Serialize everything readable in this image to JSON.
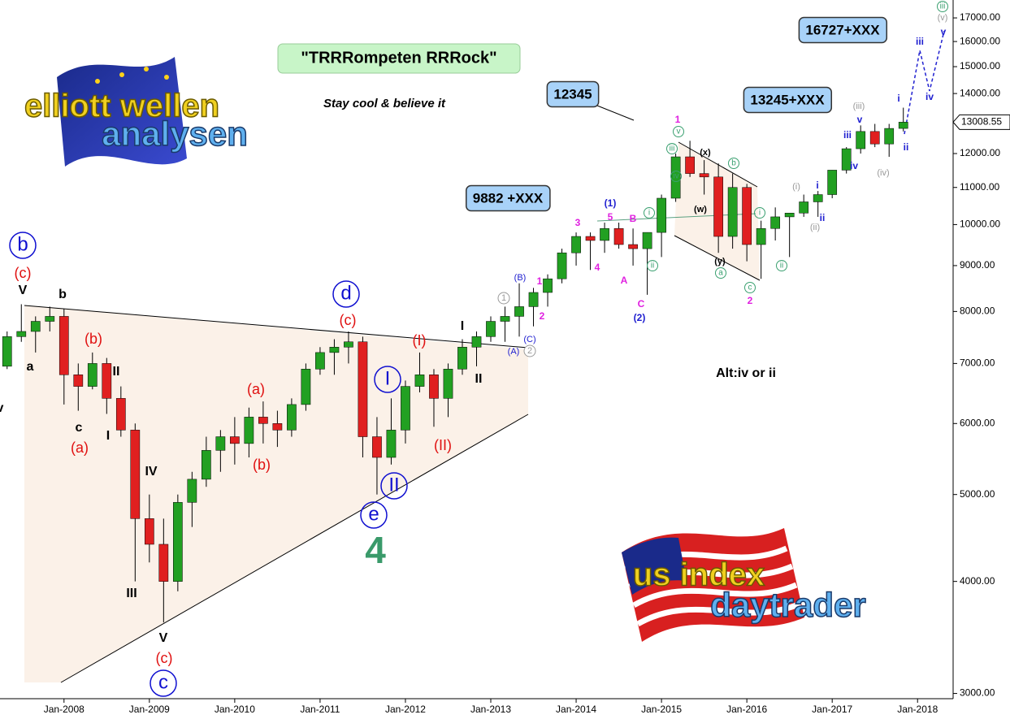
{
  "chart_data": {
    "type": "candlestick",
    "title": "\"TRRRompeten RRRock\"",
    "subtitle": "Stay cool & believe it",
    "x": [
      "Apr-2007",
      "Jun-2007",
      "Aug-2007",
      "Oct-2007",
      "Dec-2007",
      "Feb-2008",
      "Apr-2008",
      "Jun-2008",
      "Aug-2008",
      "Oct-2008",
      "Dec-2008",
      "Feb-2009",
      "Apr-2009",
      "Jun-2009",
      "Aug-2009",
      "Oct-2009",
      "Dec-2009",
      "Feb-2010",
      "Apr-2010",
      "Jun-2010",
      "Aug-2010",
      "Oct-2010",
      "Dec-2010",
      "Feb-2011",
      "Apr-2011",
      "Jun-2011",
      "Aug-2011",
      "Oct-2011",
      "Dec-2011",
      "Feb-2012",
      "Apr-2012",
      "Jun-2012",
      "Aug-2012",
      "Oct-2012",
      "Dec-2012",
      "Feb-2013",
      "Apr-2013",
      "Jun-2013",
      "Aug-2013",
      "Oct-2013",
      "Dec-2013",
      "Feb-2014",
      "Apr-2014",
      "Jun-2014",
      "Aug-2014",
      "Oct-2014",
      "Dec-2014",
      "Feb-2015",
      "Apr-2015",
      "Jun-2015",
      "Aug-2015",
      "Oct-2015",
      "Dec-2015",
      "Feb-2016",
      "Apr-2016",
      "Jun-2016",
      "Aug-2016",
      "Oct-2016",
      "Dec-2016",
      "Feb-2017",
      "Apr-2017",
      "Jun-2017",
      "Aug-2017",
      "Oct-2017"
    ],
    "open": [
      6950,
      7500,
      7600,
      7800,
      7900,
      6800,
      6600,
      7000,
      6400,
      5900,
      4700,
      4400,
      4000,
      4900,
      5200,
      5600,
      5800,
      5700,
      6100,
      6000,
      5900,
      6300,
      6900,
      7200,
      7300,
      7400,
      5800,
      5500,
      5900,
      6600,
      6800,
      6400,
      6900,
      7300,
      7500,
      7800,
      7900,
      8100,
      8400,
      8700,
      9300,
      9700,
      9600,
      9900,
      9500,
      9400,
      9800,
      10700,
      11900,
      11400,
      11300,
      9700,
      11000,
      9500,
      9900,
      10200,
      10300,
      10600,
      10800,
      11500,
      12150,
      12700,
      12300,
      12800
    ],
    "high": [
      7600,
      8150,
      7900,
      8100,
      8050,
      7000,
      7200,
      7100,
      6600,
      6000,
      5000,
      4700,
      5000,
      5300,
      5800,
      5900,
      6100,
      6250,
      6350,
      6200,
      6400,
      7000,
      7300,
      7450,
      7600,
      7500,
      6100,
      6400,
      6700,
      7200,
      6900,
      7000,
      7450,
      7600,
      7900,
      8100,
      8600,
      8500,
      8800,
      9400,
      9800,
      9800,
      10050,
      10050,
      9900,
      9800,
      10800,
      12000,
      12400,
      11800,
      11700,
      11400,
      11100,
      10100,
      10450,
      10300,
      10800,
      10900,
      11500,
      12200,
      12900,
      12950,
      12950,
      13500
    ],
    "low": [
      6900,
      7400,
      7200,
      7600,
      6300,
      6200,
      6550,
      6150,
      5800,
      4000,
      4200,
      3600,
      3900,
      4600,
      5100,
      5300,
      5400,
      5500,
      5700,
      5650,
      5800,
      6200,
      6800,
      6800,
      7000,
      5500,
      5000,
      5400,
      5700,
      6500,
      5950,
      6100,
      6800,
      6950,
      7400,
      7400,
      7500,
      7700,
      8100,
      8600,
      9000,
      8900,
      9300,
      9400,
      9000,
      8350,
      9200,
      10600,
      11300,
      10800,
      9300,
      9400,
      9100,
      8700,
      9600,
      9200,
      10200,
      10200,
      10700,
      11400,
      12000,
      12200,
      11900,
      12700
    ],
    "close": [
      7500,
      7600,
      7800,
      7900,
      6800,
      6600,
      7000,
      6400,
      5900,
      4700,
      4400,
      4000,
      4900,
      5200,
      5600,
      5800,
      5700,
      6100,
      6000,
      5900,
      6300,
      6900,
      7200,
      7300,
      7400,
      5800,
      5500,
      5900,
      6600,
      6800,
      6400,
      6900,
      7300,
      7500,
      7800,
      7900,
      8100,
      8400,
      8700,
      9300,
      9700,
      9600,
      9900,
      9500,
      9400,
      9800,
      10700,
      11900,
      11400,
      11300,
      9700,
      11000,
      9500,
      9900,
      10200,
      10300,
      10600,
      10800,
      11500,
      12150,
      12700,
      12300,
      12800,
      13008.55
    ],
    "up_color": "#22a022",
    "down_color": "#e02020",
    "xlim": [
      "Apr-2007",
      "Jun-2018"
    ],
    "xticks": [
      "Jan-2008",
      "Jan-2009",
      "Jan-2010",
      "Jan-2011",
      "Jan-2012",
      "Jan-2013",
      "Jan-2014",
      "Jan-2015",
      "Jan-2016",
      "Jan-2017",
      "Jan-2018"
    ],
    "ylim": [
      2960,
      17800
    ],
    "log_scale": true,
    "grid": false,
    "yticks": [
      {
        "value": 3000,
        "label": "3000.00"
      },
      {
        "value": 4000,
        "label": "4000.00"
      },
      {
        "value": 5000,
        "label": "5000.00"
      },
      {
        "value": 6000,
        "label": "6000.00"
      },
      {
        "value": 7000,
        "label": "7000.00"
      },
      {
        "value": 8000,
        "label": "8000.00"
      },
      {
        "value": 9000,
        "label": "9000.00"
      },
      {
        "value": 10000,
        "label": "10000.00"
      },
      {
        "value": 11000,
        "label": "11000.00"
      },
      {
        "value": 12000,
        "label": "12000.00"
      },
      {
        "value": 14000,
        "label": "14000.00"
      },
      {
        "value": 15000,
        "label": "15000.00"
      },
      {
        "value": 16000,
        "label": "16000.00"
      },
      {
        "value": 17000,
        "label": "17000.00"
      }
    ],
    "annotations": [
      "b",
      "(c)",
      "V",
      "b",
      "a",
      "(b)",
      "II",
      "c",
      "(a)",
      "I",
      "IV",
      "III",
      "V",
      "(c)",
      "c",
      "(a)",
      "(b)",
      "d",
      "(c)",
      "I",
      "II",
      "e",
      "4",
      "(I)",
      "(II)",
      "I",
      "II",
      "1",
      "2",
      "(A)",
      "(B)",
      "(C)",
      "1",
      "2",
      "3",
      "4",
      "(1)",
      "5",
      "B",
      "A",
      "C",
      "(2)",
      "i",
      "ii",
      "1",
      "v",
      "iii",
      "iv",
      "(x)",
      "b",
      "(w)",
      "(y)",
      "a",
      "c",
      "2",
      "i",
      "ii",
      "(i)",
      "(ii)",
      "i",
      "ii",
      "iii",
      "iv",
      "v",
      "(iii)",
      "(iv)",
      "i",
      "ii",
      "iii",
      "iv",
      "v",
      "(v)",
      "iii",
      "12345",
      "13245+XXX",
      "16727+XXX",
      "9882 +XXX",
      "Alt:iv or ii",
      "v"
    ],
    "logos": [
      "elliott wellen",
      "analysen",
      "us index",
      "daytrader"
    ]
  }
}
